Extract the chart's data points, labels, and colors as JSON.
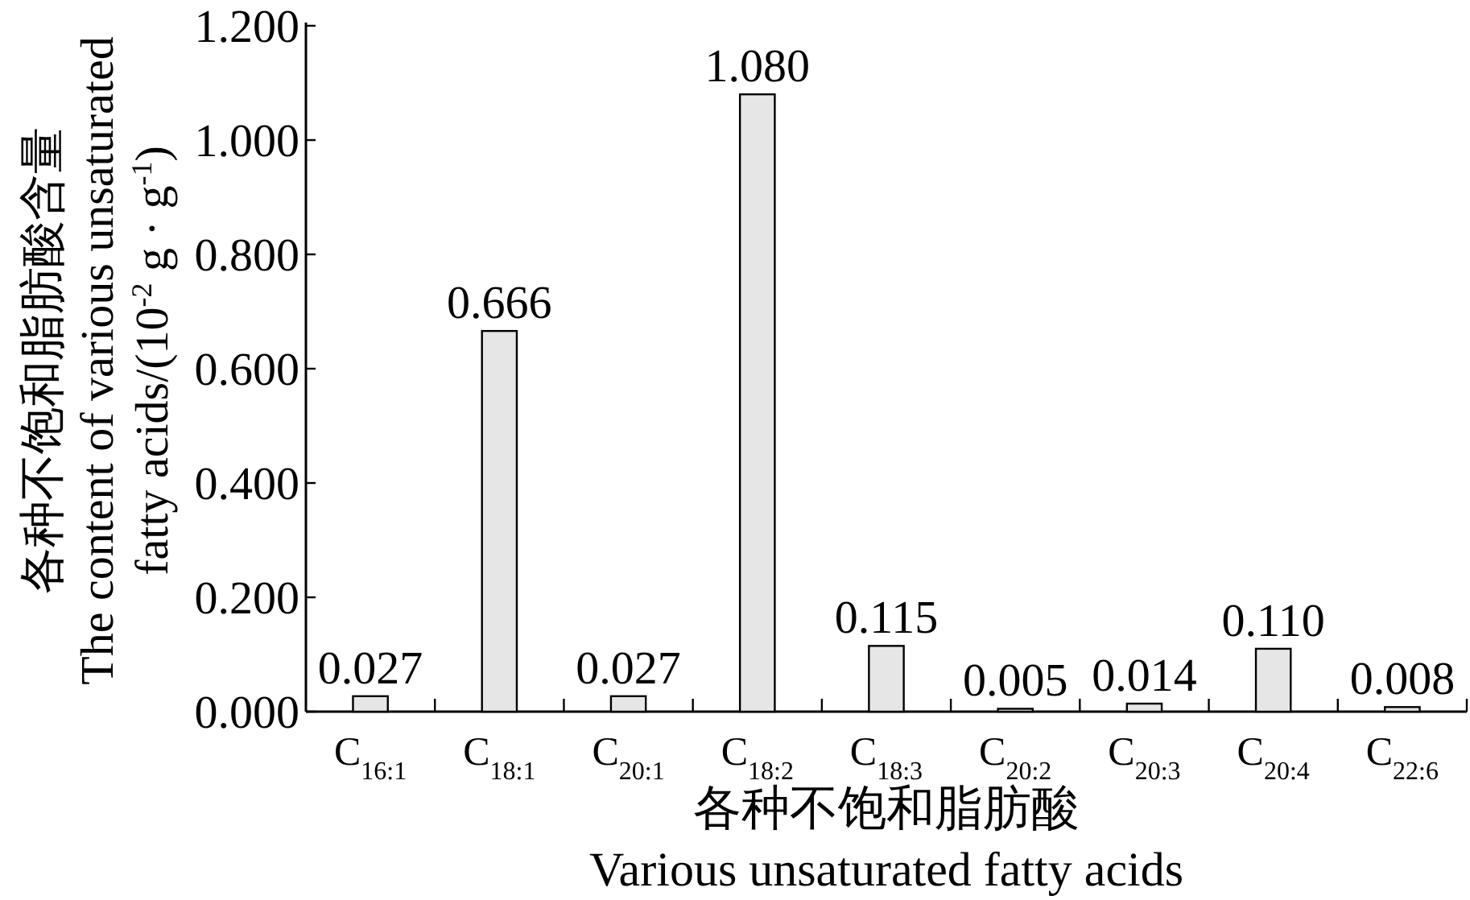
{
  "chart_data": {
    "type": "bar",
    "categories": [
      "C$_{16:1}$",
      "C$_{18:1}$",
      "C$_{20:1}$",
      "C$_{18:2}$",
      "C$_{18:3}$",
      "C$_{20:2}$",
      "C$_{20:3}$",
      "C$_{20:4}$",
      "C$_{22:6}$"
    ],
    "values": [
      0.027,
      0.666,
      0.027,
      1.08,
      0.115,
      0.005,
      0.014,
      0.11,
      0.008
    ],
    "value_labels": [
      "0.027",
      "0.666",
      "0.027",
      "1.080",
      "0.115",
      "0.005",
      "0.014",
      "0.110",
      "0.008"
    ],
    "color": "#e6e6e6",
    "ylim": [
      0,
      1.2
    ],
    "yticks": [
      {
        "value": 0,
        "label": "0.000"
      },
      {
        "value": 0.2,
        "label": "0.200"
      },
      {
        "value": 0.4,
        "label": "0.400"
      },
      {
        "value": 0.6,
        "label": "0.600"
      },
      {
        "value": 0.8,
        "label": "0.800"
      },
      {
        "value": 1.0,
        "label": "1.000"
      },
      {
        "value": 1.2,
        "label": "1.200"
      }
    ],
    "xlabel": "各种不饱和脂肪酸\nVarious unsaturated fatty acids",
    "ylabel": "各种不饱和脂肪酸含量\nThe content of various unsaturated\nfatty acids/(10$^{-2}$ g · g$^{-1}$)",
    "grid": false
  }
}
